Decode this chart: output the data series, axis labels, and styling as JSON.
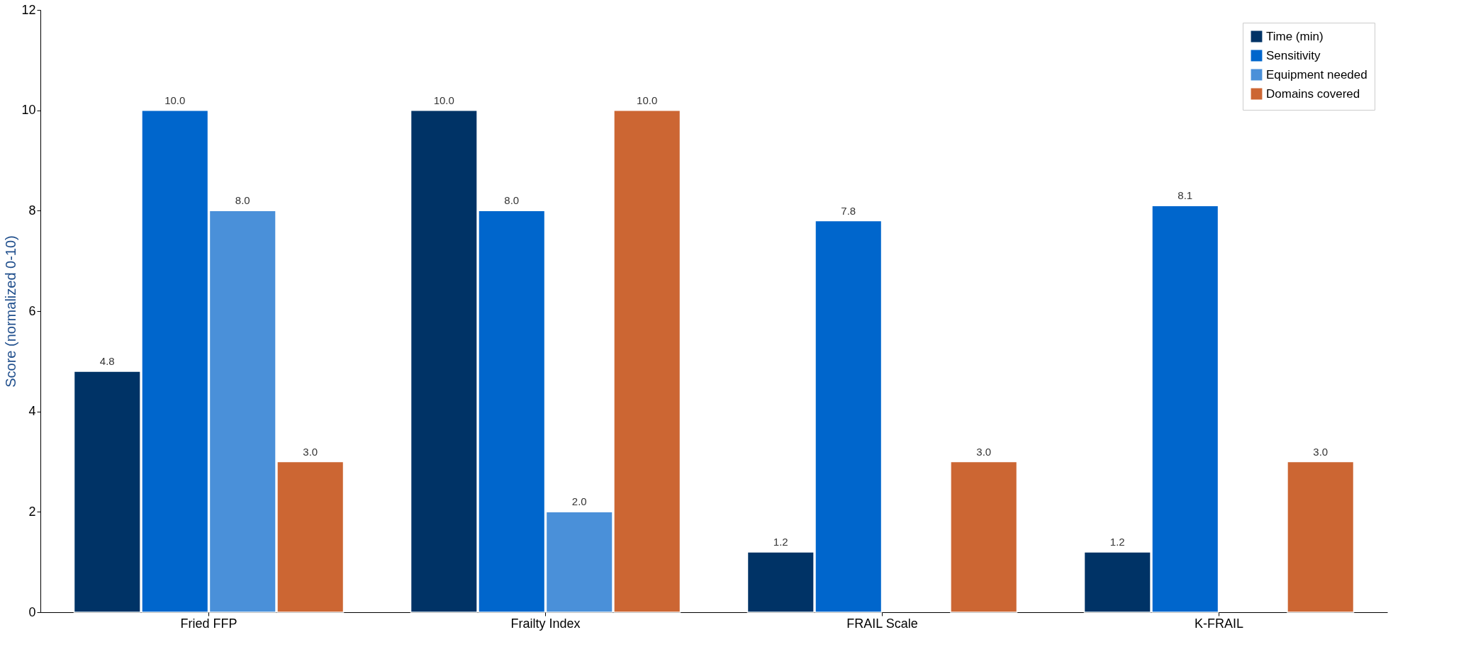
{
  "chart_data": {
    "type": "bar",
    "ylabel": "Score (normalized 0-10)",
    "categories": [
      "Fried FFP",
      "Frailty Index",
      "FRAIL Scale",
      "K-FRAIL"
    ],
    "series": [
      {
        "name": "Time (min)",
        "color": "#003366",
        "values": [
          4.8,
          10.0,
          1.2,
          1.2
        ],
        "value_labels": [
          "4.8",
          "10.0",
          "1.2",
          "1.2"
        ]
      },
      {
        "name": "Sensitivity",
        "color": "#0066cc",
        "values": [
          10.0,
          8.0,
          7.8,
          8.1
        ],
        "value_labels": [
          "10.0",
          "8.0",
          "7.8",
          "8.1"
        ]
      },
      {
        "name": "Equipment needed",
        "color": "#4a90d9",
        "values": [
          8.0,
          2.0,
          null,
          null
        ],
        "value_labels": [
          "8.0",
          "2.0",
          null,
          null
        ]
      },
      {
        "name": "Domains covered",
        "color": "#cc6633",
        "values": [
          3.0,
          10.0,
          3.0,
          3.0
        ],
        "value_labels": [
          "3.0",
          "10.0",
          "3.0",
          "3.0"
        ]
      }
    ],
    "ylim": [
      0,
      12
    ],
    "yticks": [
      0,
      2,
      4,
      6,
      8,
      10,
      12
    ],
    "grid": false,
    "legend": "top right"
  }
}
